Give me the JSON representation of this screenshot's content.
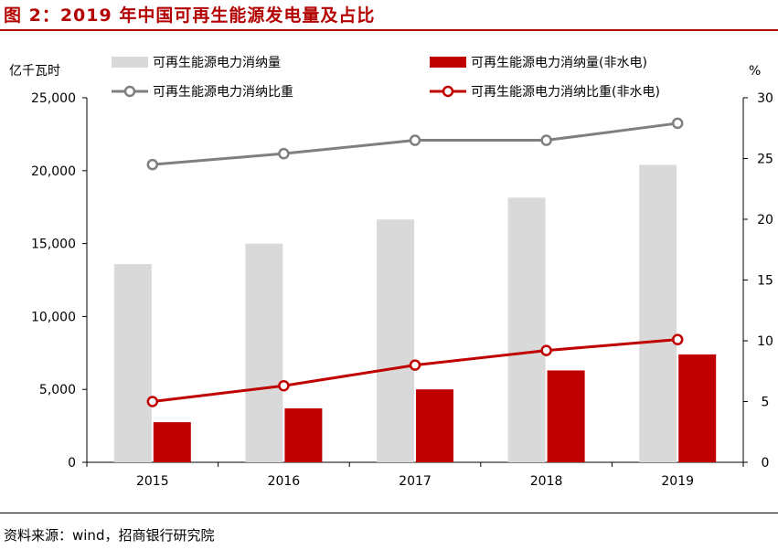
{
  "figure_title": "图 2：2019 年中国可再生能源发电量及占比",
  "source": "资料来源：wind，招商银行研究院",
  "chart_data": {
    "type": "bar",
    "categories": [
      "2015",
      "2016",
      "2017",
      "2018",
      "2019"
    ],
    "series": [
      {
        "name": "可再生能源电力消纳量",
        "kind": "bar",
        "axis": "left",
        "color": "#d9d9d9",
        "values": [
          13600,
          15000,
          16650,
          18150,
          20400
        ]
      },
      {
        "name": "可再生能源电力消纳量(非水电)",
        "kind": "bar",
        "axis": "left",
        "color": "#c00000",
        "values": [
          2750,
          3700,
          5000,
          6300,
          7400
        ]
      },
      {
        "name": "可再生能源电力消纳比重",
        "kind": "line",
        "axis": "right",
        "color": "#7f7f7f",
        "values": [
          24.5,
          25.4,
          26.5,
          26.5,
          27.9
        ]
      },
      {
        "name": "可再生能源电力消纳比重(非水电)",
        "kind": "line",
        "axis": "right",
        "color": "#c00000",
        "values": [
          5.0,
          6.3,
          8.0,
          9.2,
          10.1
        ]
      }
    ],
    "y_left_label": "亿千瓦时",
    "y_right_label": "%",
    "y_left_lim": [
      0,
      25000
    ],
    "y_right_lim": [
      0,
      30
    ],
    "y_left_ticks": [
      "0",
      "5,000",
      "10,000",
      "15,000",
      "20,000",
      "25,000"
    ],
    "y_right_ticks": [
      "0",
      "5",
      "10",
      "15",
      "20",
      "25",
      "30"
    ],
    "grid": false,
    "legend_position": "top"
  }
}
